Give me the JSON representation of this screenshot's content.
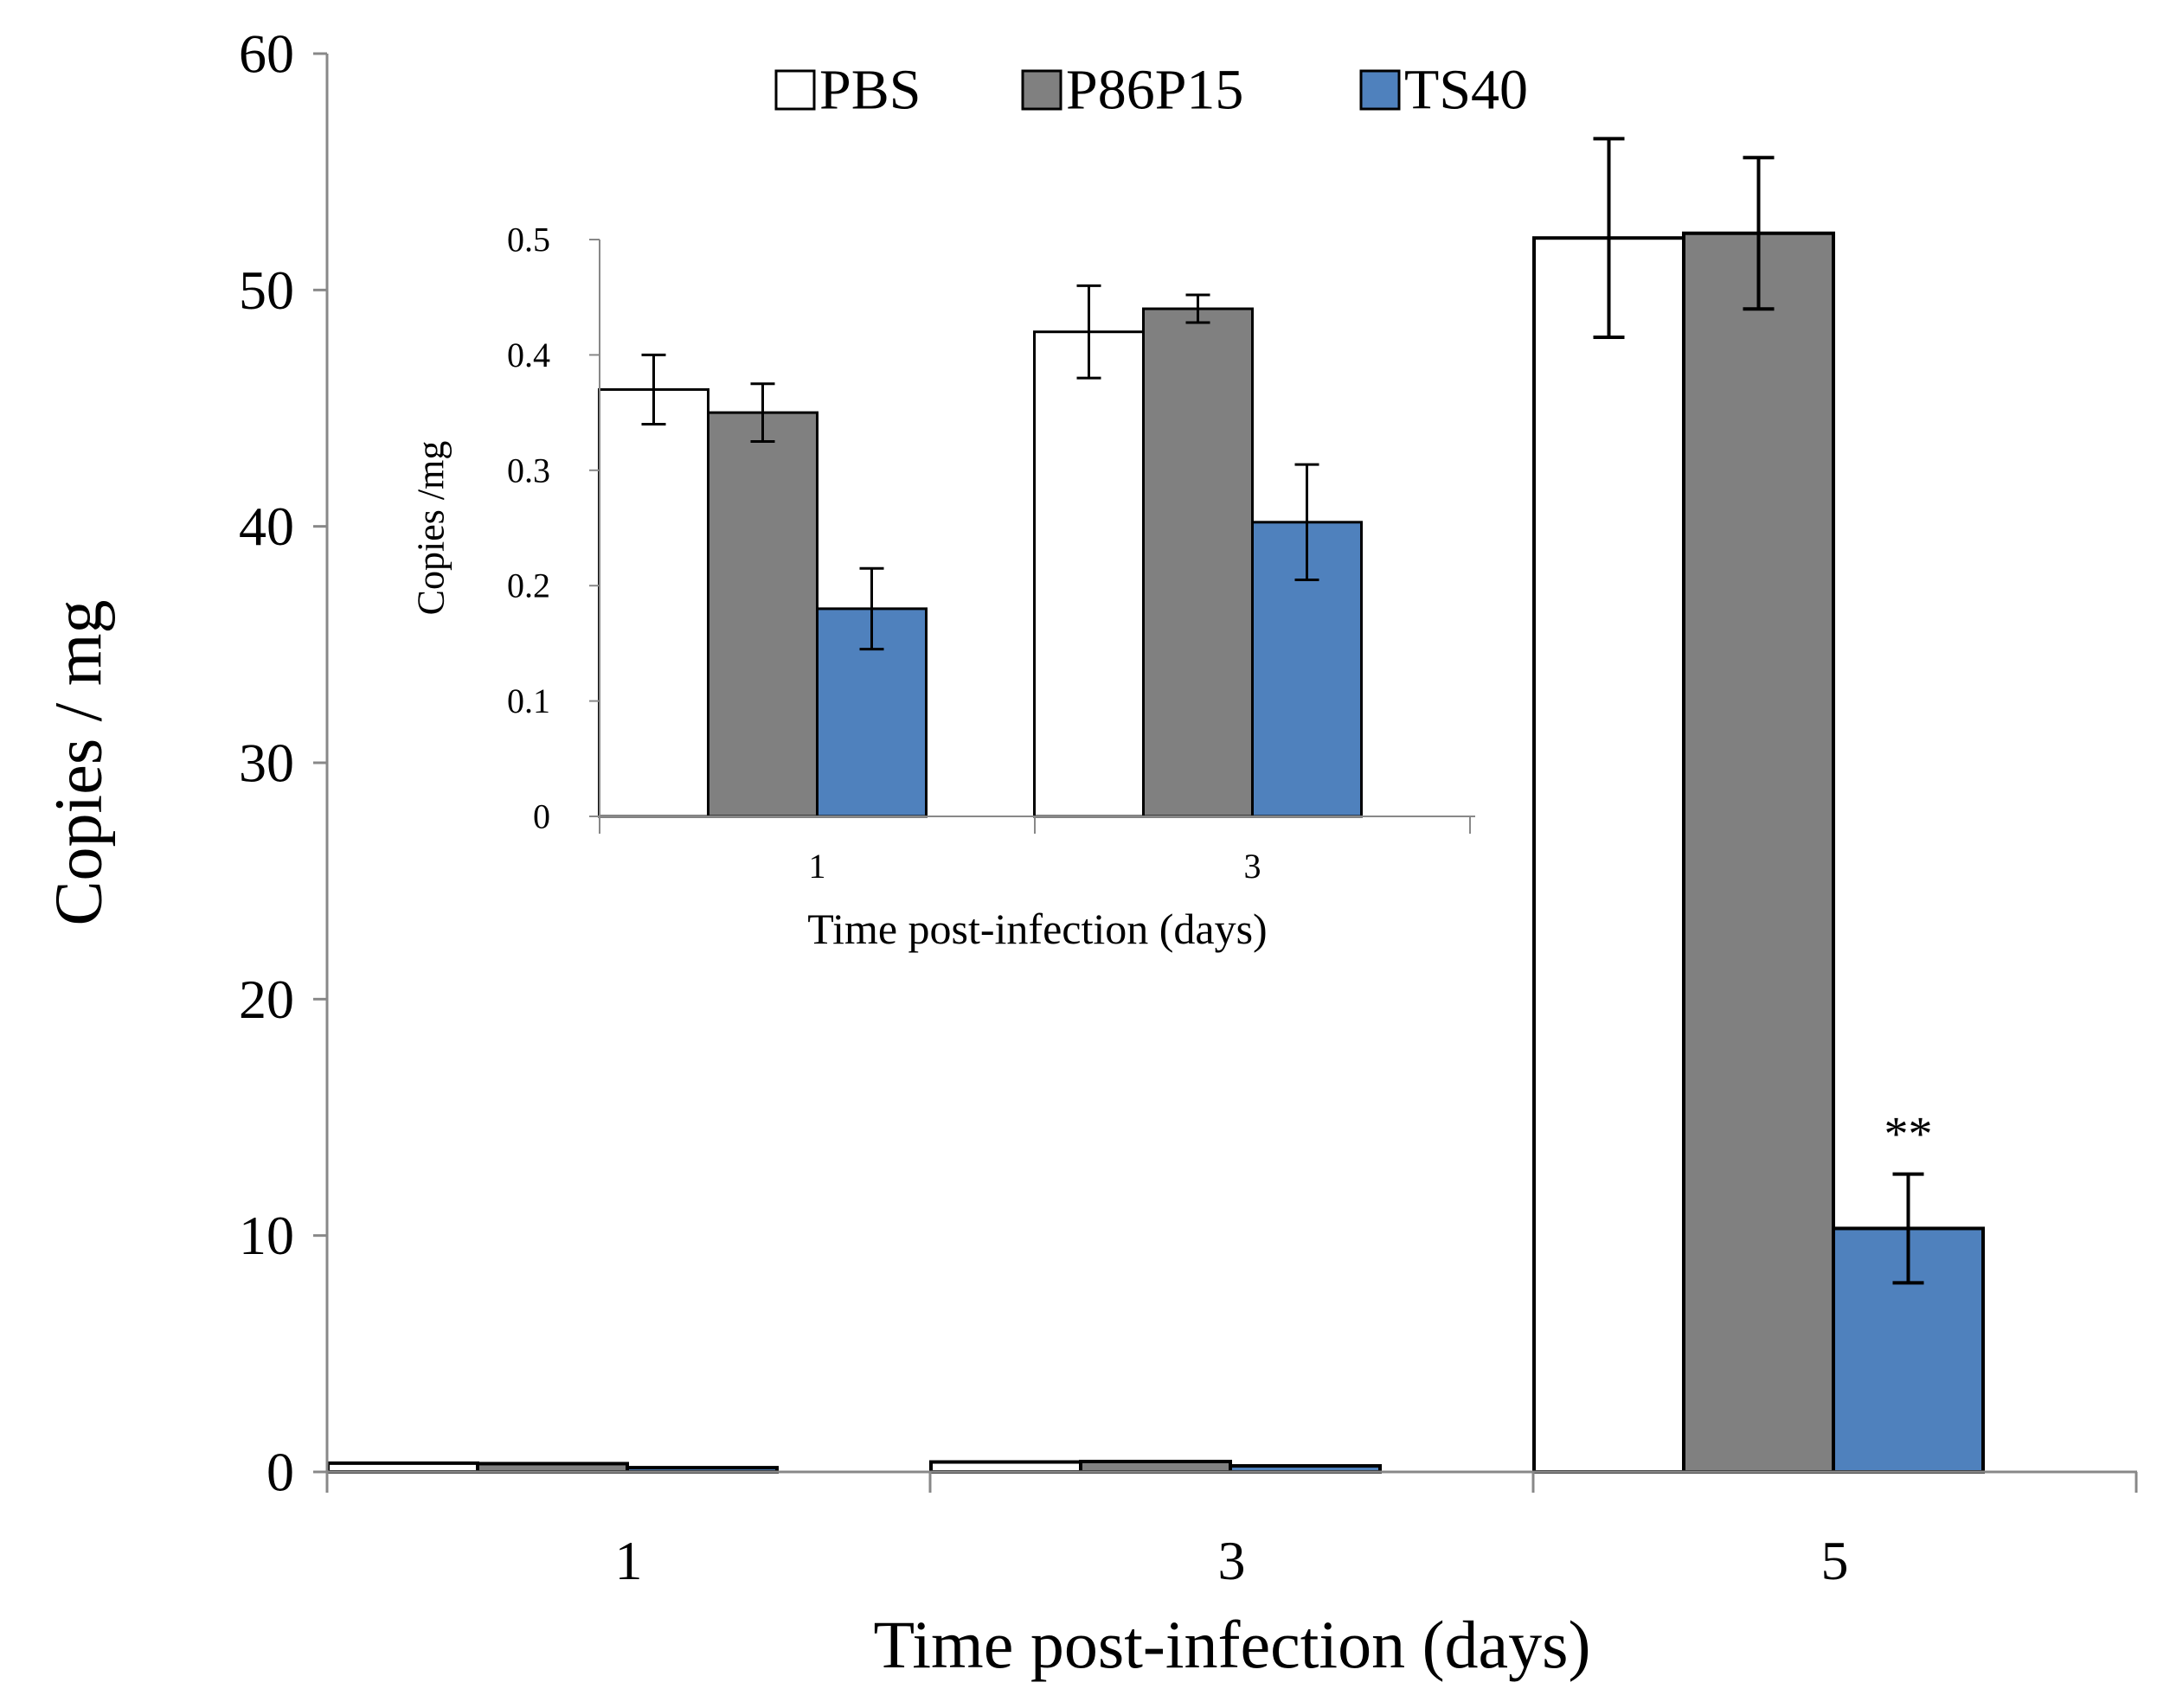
{
  "chart_data": [
    {
      "type": "bar",
      "categories": [
        "1",
        "3",
        "5"
      ],
      "series": [
        {
          "name": "PBS",
          "color": "#ffffff",
          "values": [
            0.37,
            0.42,
            52.2
          ],
          "errors": [
            0.03,
            0.04,
            4.2
          ]
        },
        {
          "name": "P86P15",
          "color": "#808080",
          "values": [
            0.35,
            0.44,
            52.4
          ],
          "errors": [
            0.025,
            0.012,
            3.2
          ]
        },
        {
          "name": "TS40",
          "color": "#4f81bd",
          "values": [
            0.18,
            0.255,
            10.3
          ],
          "errors": [
            0.035,
            0.05,
            2.3
          ]
        }
      ],
      "xlabel": "Time post-infection (days)",
      "ylabel": "Copies / mg",
      "ylim": [
        0,
        60
      ],
      "yticks": [
        0,
        10,
        20,
        30,
        40,
        50,
        60
      ],
      "legend": "top-center",
      "grid": false,
      "annotations": [
        {
          "text": "**",
          "category": "5",
          "series": "TS40"
        }
      ]
    },
    {
      "type": "bar",
      "role": "inset",
      "categories": [
        "1",
        "3"
      ],
      "series": [
        {
          "name": "PBS",
          "color": "#ffffff",
          "values": [
            0.37,
            0.42
          ],
          "errors": [
            0.03,
            0.04
          ]
        },
        {
          "name": "P86P15",
          "color": "#808080",
          "values": [
            0.35,
            0.44
          ],
          "errors": [
            0.025,
            0.012
          ]
        },
        {
          "name": "TS40",
          "color": "#4f81bd",
          "values": [
            0.18,
            0.255
          ],
          "errors": [
            0.035,
            0.05
          ]
        }
      ],
      "xlabel": "Time post-infection  (days)",
      "ylabel": "Copies /mg",
      "ylim": [
        0,
        0.5
      ],
      "yticks": [
        "0",
        "0.1",
        "0.2",
        "0.3",
        "0.4",
        "0.5"
      ],
      "grid": false
    }
  ]
}
